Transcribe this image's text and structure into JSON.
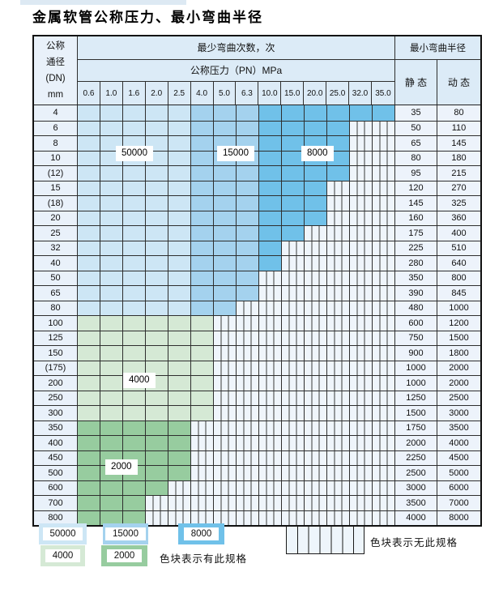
{
  "title": "金属软管公称压力、最小弯曲半径",
  "colors": {
    "b1": "#cde6f5",
    "b2": "#a4d2ee",
    "b3": "#70c1e9",
    "g1": "#d5e9d5",
    "g2": "#97cc9f",
    "nospec_bg": "#eff5fb"
  },
  "table": {
    "header": {
      "dn_lines": [
        "公称",
        "通径",
        "(DN)",
        "mm"
      ],
      "cycles_title": "最少弯曲次数，次",
      "pressure_title": "公称压力（PN）MPa",
      "pressures": [
        "0.6",
        "1.0",
        "1.6",
        "2.0",
        "2.5",
        "4.0",
        "5.0",
        "6.3",
        "10.0",
        "15.0",
        "20.0",
        "25.0",
        "32.0",
        "35.0"
      ],
      "radius_title": "最小弯曲半径",
      "static_label": "静 态",
      "dynamic_label": "动 态"
    },
    "cycle_labels": {
      "l50000": "50000",
      "l15000": "15000",
      "l8000": "8000",
      "l4000": "4000",
      "l2000": "2000"
    },
    "rows": [
      {
        "dn": "4",
        "zones": [
          [
            "b1",
            5
          ],
          [
            "b2",
            3
          ],
          [
            "b3",
            6
          ]
        ],
        "static": "35",
        "dynamic": "80"
      },
      {
        "dn": "6",
        "zones": [
          [
            "b1",
            5
          ],
          [
            "b2",
            3
          ],
          [
            "b3",
            4
          ]
        ],
        "static": "50",
        "dynamic": "110"
      },
      {
        "dn": "8",
        "zones": [
          [
            "b1",
            5
          ],
          [
            "b2",
            3
          ],
          [
            "b3",
            4
          ]
        ],
        "static": "65",
        "dynamic": "145"
      },
      {
        "dn": "10",
        "zones": [
          [
            "b1",
            5
          ],
          [
            "b2",
            3
          ],
          [
            "b3",
            4
          ]
        ],
        "static": "80",
        "dynamic": "180"
      },
      {
        "dn": "(12)",
        "zones": [
          [
            "b1",
            5
          ],
          [
            "b2",
            3
          ],
          [
            "b3",
            4
          ]
        ],
        "static": "95",
        "dynamic": "215"
      },
      {
        "dn": "15",
        "zones": [
          [
            "b1",
            5
          ],
          [
            "b2",
            3
          ],
          [
            "b3",
            3
          ]
        ],
        "static": "120",
        "dynamic": "270"
      },
      {
        "dn": "(18)",
        "zones": [
          [
            "b1",
            5
          ],
          [
            "b2",
            3
          ],
          [
            "b3",
            3
          ]
        ],
        "static": "145",
        "dynamic": "325"
      },
      {
        "dn": "20",
        "zones": [
          [
            "b1",
            5
          ],
          [
            "b2",
            3
          ],
          [
            "b3",
            3
          ]
        ],
        "static": "160",
        "dynamic": "360"
      },
      {
        "dn": "25",
        "zones": [
          [
            "b1",
            5
          ],
          [
            "b2",
            3
          ],
          [
            "b3",
            2
          ]
        ],
        "static": "175",
        "dynamic": "400"
      },
      {
        "dn": "32",
        "zones": [
          [
            "b1",
            5
          ],
          [
            "b2",
            3
          ],
          [
            "b3",
            1
          ]
        ],
        "static": "225",
        "dynamic": "510"
      },
      {
        "dn": "40",
        "zones": [
          [
            "b1",
            5
          ],
          [
            "b2",
            3
          ],
          [
            "b3",
            1
          ]
        ],
        "static": "280",
        "dynamic": "640"
      },
      {
        "dn": "50",
        "zones": [
          [
            "b1",
            5
          ],
          [
            "b2",
            3
          ]
        ],
        "static": "350",
        "dynamic": "800"
      },
      {
        "dn": "65",
        "zones": [
          [
            "b1",
            5
          ],
          [
            "b2",
            3
          ]
        ],
        "static": "390",
        "dynamic": "845"
      },
      {
        "dn": "80",
        "zones": [
          [
            "b1",
            5
          ],
          [
            "b2",
            2
          ]
        ],
        "static": "480",
        "dynamic": "1000"
      },
      {
        "dn": "100",
        "zones": [
          [
            "g1",
            6
          ]
        ],
        "static": "600",
        "dynamic": "1200"
      },
      {
        "dn": "125",
        "zones": [
          [
            "g1",
            6
          ]
        ],
        "static": "750",
        "dynamic": "1500"
      },
      {
        "dn": "150",
        "zones": [
          [
            "g1",
            6
          ]
        ],
        "static": "900",
        "dynamic": "1800"
      },
      {
        "dn": "(175)",
        "zones": [
          [
            "g1",
            6
          ]
        ],
        "static": "1000",
        "dynamic": "2000"
      },
      {
        "dn": "200",
        "zones": [
          [
            "g1",
            6
          ]
        ],
        "static": "1000",
        "dynamic": "2000"
      },
      {
        "dn": "250",
        "zones": [
          [
            "g1",
            6
          ]
        ],
        "static": "1250",
        "dynamic": "2500"
      },
      {
        "dn": "300",
        "zones": [
          [
            "g1",
            6
          ]
        ],
        "static": "1500",
        "dynamic": "3000"
      },
      {
        "dn": "350",
        "zones": [
          [
            "g2",
            5
          ]
        ],
        "static": "1750",
        "dynamic": "3500"
      },
      {
        "dn": "400",
        "zones": [
          [
            "g2",
            5
          ]
        ],
        "static": "2000",
        "dynamic": "4000"
      },
      {
        "dn": "450",
        "zones": [
          [
            "g2",
            5
          ]
        ],
        "static": "2250",
        "dynamic": "4500"
      },
      {
        "dn": "500",
        "zones": [
          [
            "g2",
            5
          ]
        ],
        "static": "2500",
        "dynamic": "5000"
      },
      {
        "dn": "600",
        "zones": [
          [
            "g2",
            4
          ]
        ],
        "static": "3000",
        "dynamic": "6000"
      },
      {
        "dn": "700",
        "zones": [
          [
            "g2",
            3
          ]
        ],
        "static": "3500",
        "dynamic": "7000"
      },
      {
        "dn": "800",
        "zones": [
          [
            "g2",
            3
          ]
        ],
        "static": "4000",
        "dynamic": "8000"
      }
    ],
    "total_pressure_columns": 14
  },
  "legend": {
    "row1": [
      {
        "value": "50000",
        "color_key": "b1"
      },
      {
        "value": "15000",
        "color_key": "b2"
      },
      {
        "value": "8000",
        "color_key": "b3"
      }
    ],
    "row2": [
      {
        "value": "4000",
        "color_key": "g1"
      },
      {
        "value": "2000",
        "color_key": "g2"
      }
    ],
    "exists_text": "色块表示有此规格",
    "not_exists_text": "色块表示无此规格"
  }
}
